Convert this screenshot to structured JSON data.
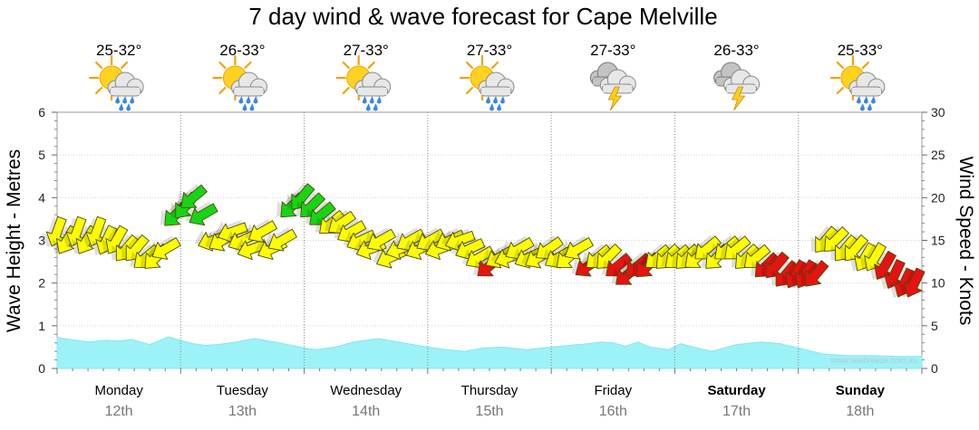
{
  "chart_data": {
    "type": "line",
    "title": "7 day wind & wave forecast for Cape Melville",
    "ylabel_left": "Wave Height - Metres",
    "ylabel_right": "Wind Speed - Knots",
    "ylim_left": [
      0,
      6
    ],
    "ylim_right": [
      0,
      30
    ],
    "yticks_left": [
      "0",
      "1",
      "2",
      "3",
      "4",
      "5",
      "6"
    ],
    "yticks_right": [
      "0",
      "5",
      "10",
      "15",
      "20",
      "25",
      "30"
    ],
    "watermark": "www.seabreeze.com.au",
    "days": [
      {
        "day": "Monday",
        "date": "12th",
        "temp": "25-32°",
        "icon": "sun-cloud-rain-icon",
        "bold": false
      },
      {
        "day": "Tuesday",
        "date": "13th",
        "temp": "26-33°",
        "icon": "sun-cloud-rain-icon",
        "bold": false
      },
      {
        "day": "Wednesday",
        "date": "14th",
        "temp": "27-33°",
        "icon": "sun-cloud-rain-icon",
        "bold": false
      },
      {
        "day": "Thursday",
        "date": "15th",
        "temp": "27-33°",
        "icon": "sun-cloud-rain-icon",
        "bold": false
      },
      {
        "day": "Friday",
        "date": "16th",
        "temp": "27-33°",
        "icon": "storm-cloud-icon",
        "bold": false
      },
      {
        "day": "Saturday",
        "date": "17th",
        "temp": "26-33°",
        "icon": "storm-cloud-icon",
        "bold": true
      },
      {
        "day": "Sunday",
        "date": "18th",
        "temp": "25-33°",
        "icon": "sun-cloud-rain-icon",
        "bold": true
      }
    ],
    "series": [
      {
        "name": "Wave Height",
        "axis": "left",
        "units": "m",
        "x_days": [
          0,
          0.1,
          0.25,
          0.4,
          0.5,
          0.6,
          0.75,
          0.9,
          1.0,
          1.1,
          1.2,
          1.3,
          1.45,
          1.6,
          1.8,
          2.0,
          2.1,
          2.25,
          2.4,
          2.6,
          2.8,
          3.0,
          3.15,
          3.3,
          3.45,
          3.6,
          3.8,
          4.0,
          4.15,
          4.3,
          4.4,
          4.5,
          4.6,
          4.7,
          4.8,
          4.95,
          5.05,
          5.15,
          5.3,
          5.5,
          5.7,
          5.85,
          6.0,
          6.2,
          6.4,
          6.6,
          6.8,
          7.0
        ],
        "values": [
          0.72,
          0.68,
          0.62,
          0.66,
          0.64,
          0.68,
          0.56,
          0.74,
          0.66,
          0.58,
          0.54,
          0.56,
          0.62,
          0.7,
          0.6,
          0.48,
          0.44,
          0.5,
          0.62,
          0.7,
          0.6,
          0.5,
          0.44,
          0.4,
          0.48,
          0.5,
          0.44,
          0.5,
          0.54,
          0.58,
          0.62,
          0.6,
          0.52,
          0.62,
          0.5,
          0.44,
          0.58,
          0.5,
          0.4,
          0.56,
          0.62,
          0.58,
          0.48,
          0.34,
          0.3,
          0.3,
          0.28,
          0.28
        ]
      },
      {
        "name": "Wind Speed",
        "axis": "right",
        "units": "knots",
        "x_days": [
          0.0,
          0.08,
          0.16,
          0.24,
          0.32,
          0.4,
          0.48,
          0.56,
          0.64,
          0.72,
          0.8,
          0.88,
          0.96,
          1.04,
          1.1,
          1.18,
          1.26,
          1.34,
          1.42,
          1.5,
          1.58,
          1.66,
          1.74,
          1.82,
          1.9,
          1.98,
          2.06,
          2.14,
          2.22,
          2.3,
          2.38,
          2.46,
          2.54,
          2.62,
          2.7,
          2.78,
          2.86,
          2.94,
          3.02,
          3.1,
          3.18,
          3.26,
          3.34,
          3.42,
          3.5,
          3.58,
          3.66,
          3.74,
          3.82,
          3.9,
          3.98,
          4.06,
          4.14,
          4.22,
          4.3,
          4.38,
          4.46,
          4.54,
          4.62,
          4.7,
          4.78,
          4.86,
          4.94,
          5.02,
          5.1,
          5.18,
          5.26,
          5.34,
          5.42,
          5.5,
          5.58,
          5.66,
          5.74,
          5.82,
          5.9,
          5.98,
          6.06,
          6.14,
          6.22,
          6.3,
          6.38,
          6.46,
          6.54,
          6.62,
          6.7,
          6.78,
          6.86,
          6.94
        ],
        "values": [
          16,
          15,
          16,
          15,
          16,
          15,
          15,
          14,
          14,
          13,
          13,
          14,
          18,
          19,
          20,
          18,
          15,
          15,
          16,
          15,
          14,
          16,
          14,
          15,
          19,
          20,
          19,
          18,
          17,
          17,
          16,
          15,
          14,
          15,
          13,
          14,
          15,
          14,
          15,
          14,
          15,
          15,
          14,
          13,
          12,
          13,
          13,
          14,
          13,
          13,
          14,
          13,
          13,
          14,
          12,
          13,
          13,
          12,
          11,
          12,
          12,
          13,
          13,
          13,
          13,
          13,
          14,
          13,
          14,
          14,
          13,
          13,
          12,
          12,
          11,
          11,
          11,
          11,
          15,
          15,
          14,
          14,
          13,
          13,
          12,
          11,
          10,
          10
        ],
        "directions_deg": [
          110,
          120,
          110,
          120,
          110,
          115,
          120,
          130,
          130,
          140,
          135,
          150,
          135,
          130,
          140,
          150,
          160,
          150,
          160,
          155,
          160,
          150,
          155,
          150,
          135,
          130,
          135,
          140,
          140,
          145,
          150,
          155,
          160,
          150,
          155,
          160,
          150,
          155,
          150,
          160,
          155,
          160,
          155,
          150,
          140,
          150,
          160,
          150,
          155,
          150,
          145,
          150,
          140,
          150,
          145,
          140,
          135,
          140,
          140,
          140,
          135,
          140,
          135,
          140,
          135,
          140,
          140,
          135,
          140,
          140,
          135,
          140,
          135,
          130,
          130,
          120,
          120,
          130,
          130,
          135,
          130,
          130,
          120,
          120,
          120,
          115,
          115,
          115
        ]
      }
    ]
  }
}
